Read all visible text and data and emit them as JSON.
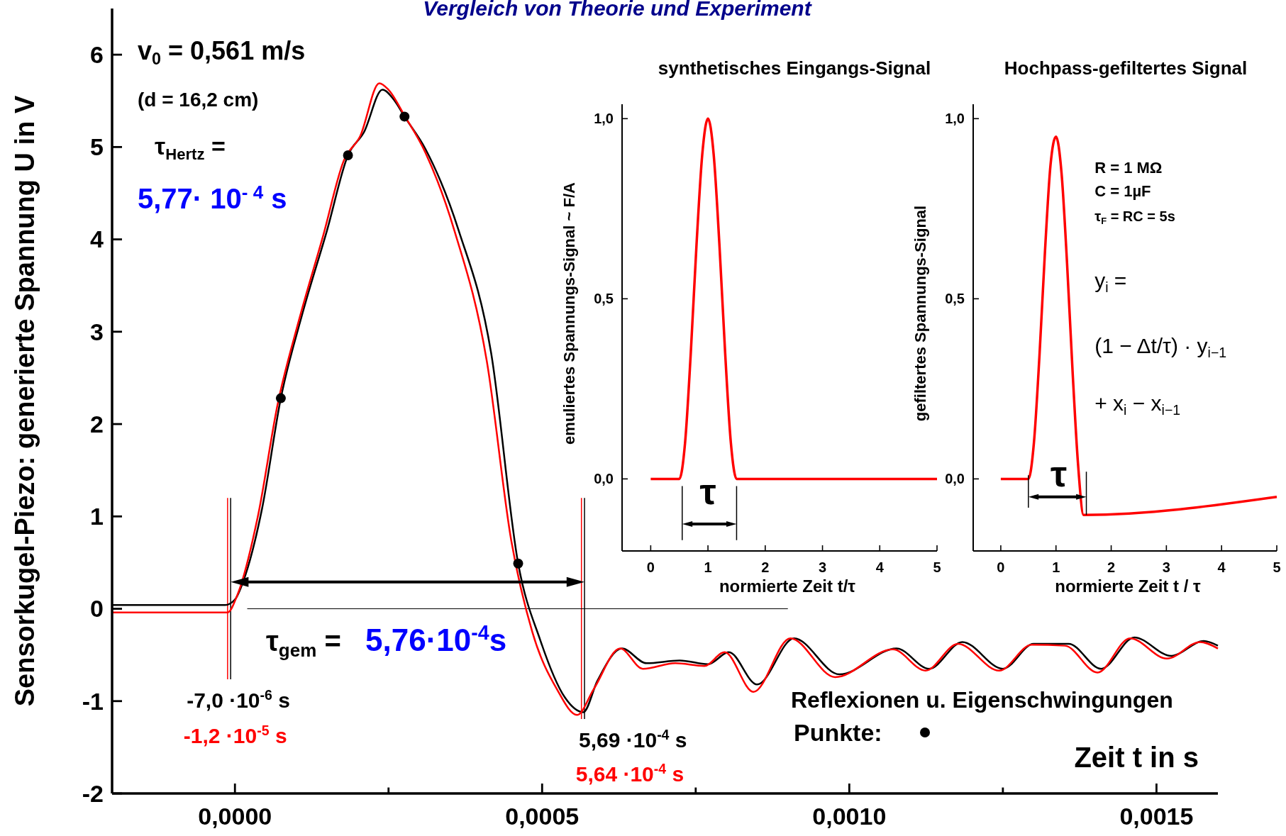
{
  "chart_data": [
    {
      "type": "line",
      "title": "Vergleich von Theorie und Experiment",
      "xlabel": "Zeit  t  in  s",
      "ylabel": "Sensorkugel-Piezo: generierte Spannung  U  in V",
      "xlim": [
        -0.0002,
        0.0016
      ],
      "ylim": [
        -2,
        6.5
      ],
      "xticks": [
        {
          "value": 0,
          "label": "0,0000"
        },
        {
          "value": 0.00025,
          "label": null
        },
        {
          "value": 0.0005,
          "label": "0,0005"
        },
        {
          "value": 0.00075,
          "label": null
        },
        {
          "value": 0.001,
          "label": "0,0010"
        },
        {
          "value": 0.00125,
          "label": null
        },
        {
          "value": 0.0015,
          "label": "0,0015"
        }
      ],
      "yticks": [
        -2,
        -1,
        0,
        1,
        2,
        3,
        4,
        5,
        6
      ],
      "legend": "bottom right",
      "line_style": "solid",
      "series": [
        {
          "color": "#000000",
          "x": [
            -0.0002,
            -1.6e-05,
            0,
            1.73e-05,
            4.4e-05,
            7.47e-05,
            0.00011,
            0.00015,
            0.000184,
            0.00021,
            0.00024,
            0.00026,
            0.000276,
            0.00031,
            0.000364,
            0.000417,
            0.000461,
            0.000497,
            0.000537,
            0.000567,
            0.00059,
            0.00063,
            0.00067,
            0.000724,
            0.00077,
            0.000804,
            0.00085,
            0.00091,
            0.000984,
            0.001077,
            0.00113,
            0.001184,
            0.00125,
            0.0013,
            0.001357,
            0.00141,
            0.001464,
            0.001524,
            0.001577,
            0.0016
          ],
          "values": [
            0.04,
            0.04,
            0.1,
            0.37,
            1.08,
            2.28,
            3.2,
            4.1,
            4.91,
            5.16,
            5.62,
            5.5,
            5.33,
            4.98,
            4.1,
            2.77,
            0.49,
            -0.34,
            -0.96,
            -1.12,
            -0.78,
            -0.43,
            -0.59,
            -0.56,
            -0.6,
            -0.47,
            -0.82,
            -0.32,
            -0.71,
            -0.43,
            -0.65,
            -0.36,
            -0.65,
            -0.38,
            -0.38,
            -0.65,
            -0.31,
            -0.51,
            -0.35,
            -0.4
          ]
        },
        {
          "color": "#ff0000",
          "x": [
            -0.0002,
            -1.2e-05,
            4e-06,
            3.7e-05,
            7e-05,
            0.000104,
            0.000144,
            0.000177,
            0.000204,
            0.000235,
            0.00025,
            0.000276,
            0.00031,
            0.000357,
            0.00041,
            0.00045,
            0.000484,
            0.000524,
            0.000557,
            0.000584,
            0.000627,
            0.000664,
            0.000717,
            0.000764,
            0.000797,
            0.000844,
            0.000904,
            0.000977,
            0.001071,
            0.001124,
            0.001177,
            0.001244,
            0.001297,
            0.001351,
            0.001404,
            0.001457,
            0.001517,
            0.001571,
            0.0016
          ],
          "values": [
            -0.04,
            -0.04,
            0.15,
            0.99,
            2.23,
            3.12,
            4.05,
            4.85,
            5.12,
            5.69,
            5.62,
            5.34,
            4.94,
            4.1,
            2.68,
            0.73,
            -0.25,
            -0.87,
            -1.15,
            -0.87,
            -0.43,
            -0.65,
            -0.59,
            -0.62,
            -0.47,
            -0.9,
            -0.32,
            -0.74,
            -0.44,
            -0.67,
            -0.38,
            -0.67,
            -0.39,
            -0.4,
            -0.69,
            -0.32,
            -0.54,
            -0.36,
            -0.43
          ]
        },
        {
          "type": "scatter",
          "name": "Punkte:",
          "color": "#000000",
          "marker": "circle",
          "x": [
            7.47e-05,
            0.000184,
            0.000276,
            0.000461
          ],
          "values": [
            2.28,
            4.91,
            5.33,
            0.49
          ]
        }
      ],
      "ref_lines": [
        {
          "axis": "x",
          "value": -7e-06,
          "label": "-7,0 ·10$^{-6}$ s",
          "color": "#000000"
        },
        {
          "axis": "x",
          "value": -1.2e-05,
          "label": "-1,2 ·10$^{-5}$ s",
          "color": "#ff0000"
        },
        {
          "axis": "x",
          "value": 0.000569,
          "label": "5,69 ·10$^{-4}$ s",
          "color": "#000000"
        },
        {
          "axis": "x",
          "value": 0.000564,
          "label": "5,64 ·10$^{-4}$ s",
          "color": "#ff0000"
        },
        {
          "axis": "y",
          "value": 0,
          "color": "#000000"
        }
      ],
      "annotations": [
        "v$_{0}$ =  0,561 m/s",
        "(d = 16,2 cm)",
        "τ$_{Hertz}$  =",
        "5,77· 10$^{- 4}$ s",
        "τ$_{gem}$ =",
        "5,76·10$^{-4}$s",
        "Reflexionen u. Eigenschwingungen"
      ]
    },
    {
      "type": "line",
      "title": "synthetisches Eingangs-Signal",
      "xlabel": "normierte Zeit  t/τ",
      "ylabel": "emuliertes Spannungs-Signal ~ F/A",
      "xlim": [
        -0.5,
        5
      ],
      "ylim": [
        -0.2,
        1.04
      ],
      "xticks": [
        0,
        1,
        2,
        3,
        4,
        5
      ],
      "yticks": [
        {
          "value": 0,
          "label": "0,0"
        },
        {
          "value": 0.5,
          "label": "0,5"
        },
        {
          "value": 1,
          "label": "1,0"
        }
      ],
      "line_style": "solid",
      "series": [
        {
          "color": "#ff0000",
          "x": [
            0,
            0.5,
            0.6,
            0.7,
            0.8,
            0.9,
            1,
            1.1,
            1.2,
            1.3,
            1.4,
            1.5,
            5
          ],
          "values": [
            0,
            0,
            0.1,
            0.35,
            0.65,
            0.9,
            1,
            0.9,
            0.65,
            0.35,
            0.1,
            0,
            0
          ]
        }
      ],
      "annotations": [
        "τ"
      ]
    },
    {
      "type": "line",
      "title": "Hochpass-gefiltertes Signal",
      "xlabel": "normierte Zeit   t / τ",
      "ylabel": "gefiltertes Spannungs-Signal",
      "xlim": [
        -0.5,
        5
      ],
      "ylim": [
        -0.2,
        1.04
      ],
      "xticks": [
        0,
        1,
        2,
        3,
        4,
        5
      ],
      "yticks": [
        {
          "value": 0,
          "label": "0,0"
        },
        {
          "value": 0.5,
          "label": "0,5"
        },
        {
          "value": 1,
          "label": "1,0"
        }
      ],
      "line_style": "solid",
      "series": [
        {
          "color": "#ff0000",
          "x": [
            0,
            0.5,
            0.6,
            0.7,
            0.8,
            0.9,
            1,
            1.1,
            1.2,
            1.3,
            1.4,
            1.5,
            5
          ],
          "values": [
            0,
            0,
            0.1,
            0.34,
            0.63,
            0.87,
            0.95,
            0.85,
            0.6,
            0.3,
            0.04,
            -0.1,
            -0.05
          ]
        }
      ],
      "annotations": [
        "τ",
        "R  =  1 MΩ",
        "C  =  1µF",
        "τ$_{F}$   = RC = 5s",
        "y$_{i}$   =",
        "(1 − Δt/τ) · y$_{i−1}$",
        "+ x$_{i}$ − x$_{i−1}$"
      ]
    }
  ]
}
